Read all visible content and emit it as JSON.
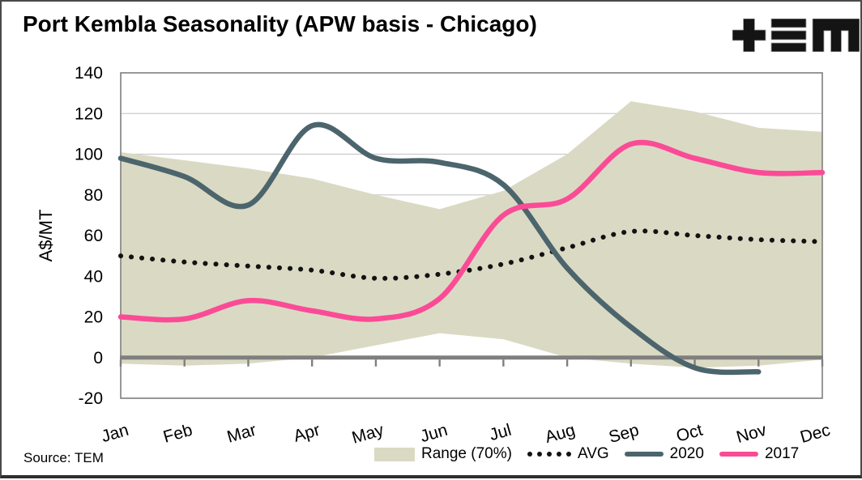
{
  "header": {
    "title": "Port Kembla Seasonality (APW basis - Chicago)",
    "logo": "TEM"
  },
  "source_note": "Source: TEM",
  "colors": {
    "band": "#DADAC4",
    "avg": "#121212",
    "y2020": "#4C656D",
    "y2017": "#FB4B96",
    "grid": "#CBCBCB",
    "axis": "#7F7F7F",
    "text": "#000000"
  },
  "legend": [
    {
      "label": "Range (70%)",
      "type": "area",
      "color": "#DADAC4"
    },
    {
      "label": "AVG",
      "type": "dots",
      "color": "#121212"
    },
    {
      "label": "2020",
      "type": "line",
      "color": "#4C656D"
    },
    {
      "label": "2017",
      "type": "line",
      "color": "#FB4B96"
    }
  ],
  "chart_data": {
    "type": "line",
    "title": "Port Kembla Seasonality (APW basis - Chicago)",
    "ylabel": "A$/MT",
    "xlabel": "",
    "ylim": [
      -20,
      140
    ],
    "ytick_step": 20,
    "grid": "horizontal",
    "legend_position": "bottom",
    "x_label_rotation_deg": -16,
    "categories": [
      "Jan",
      "Feb",
      "Mar",
      "Apr",
      "May",
      "Jun",
      "Jul",
      "Aug",
      "Sep",
      "Oct",
      "Nov",
      "Dec"
    ],
    "series": [
      {
        "name": "Range (70%)",
        "role": "band",
        "display": "area-band",
        "color": "#DADAC4",
        "upper": [
          101,
          97,
          93,
          88,
          80,
          73,
          82,
          100,
          126,
          121,
          113,
          111
        ],
        "lower": [
          -3,
          -4,
          -3,
          0,
          6,
          12,
          9,
          0,
          -3,
          -5,
          -4,
          -1
        ]
      },
      {
        "name": "AVG",
        "role": "avg",
        "display": "dotted-smooth-line",
        "color": "#121212",
        "values": [
          50,
          47,
          45,
          43,
          39,
          41,
          46,
          54,
          62,
          60,
          58,
          57
        ]
      },
      {
        "name": "2020",
        "role": "y2020",
        "display": "smooth-line",
        "color": "#4C656D",
        "values": [
          98,
          89,
          75,
          114,
          98,
          96,
          85,
          44,
          15,
          -5,
          -7,
          null
        ]
      },
      {
        "name": "2017",
        "role": "y2017",
        "display": "smooth-line",
        "color": "#FB4B96",
        "values": [
          20,
          19,
          28,
          23,
          19,
          29,
          70,
          78,
          105,
          98,
          91,
          91
        ]
      }
    ]
  }
}
